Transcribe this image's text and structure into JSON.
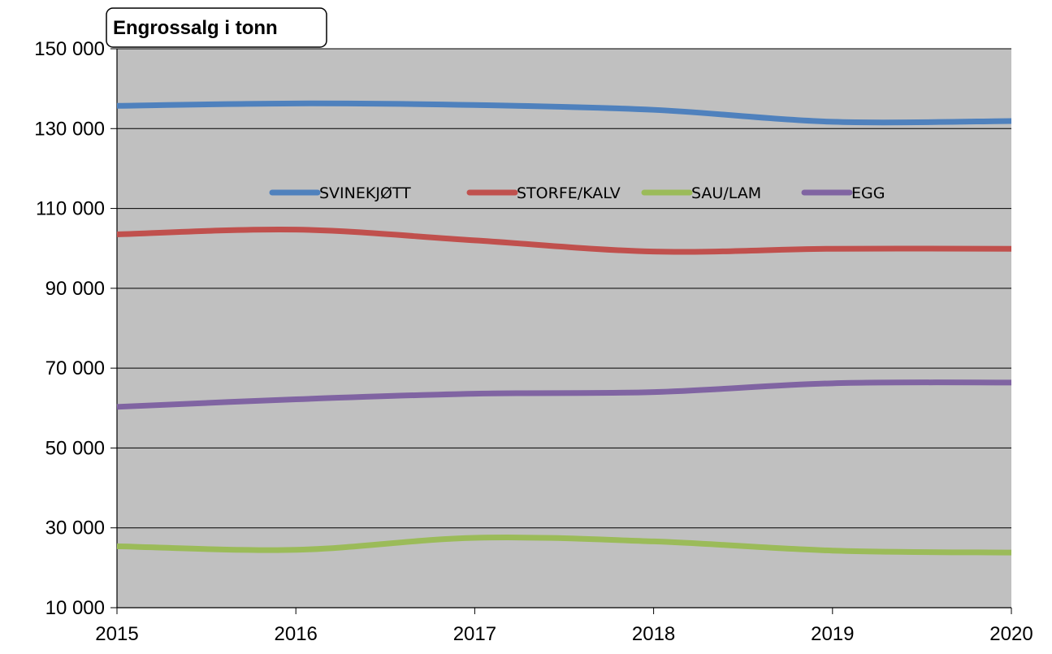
{
  "chart_data": {
    "type": "line",
    "title": "Engrossalg i tonn",
    "xlabel": "",
    "ylabel": "",
    "x": [
      2015,
      2016,
      2017,
      2018,
      2019,
      2020
    ],
    "x_tick_labels": [
      "2015",
      "2016",
      "2017",
      "2018",
      "2019",
      "2020"
    ],
    "ylim": [
      10000,
      150000
    ],
    "y_ticks": [
      10000,
      30000,
      50000,
      70000,
      90000,
      110000,
      130000,
      150000
    ],
    "y_tick_labels": [
      "10 000",
      "30 000",
      "50 000",
      "70 000",
      "90 000",
      "110 000",
      "130 000",
      "150 000"
    ],
    "grid": true,
    "legend_position": "top-center inside plot",
    "plot_background": "#c0c0c0",
    "series": [
      {
        "name": "SVINEKJØTT",
        "color": "#4f81bd",
        "values": [
          135700,
          136300,
          135900,
          134700,
          131700,
          131900
        ]
      },
      {
        "name": "STORFE/KALV",
        "color": "#c0504d",
        "values": [
          103500,
          104700,
          102000,
          99200,
          99900,
          99900
        ]
      },
      {
        "name": "SAU/LAM",
        "color": "#9bbb59",
        "values": [
          25400,
          24500,
          27500,
          26600,
          24300,
          23800
        ]
      },
      {
        "name": "EGG",
        "color": "#8064a2",
        "values": [
          60300,
          62200,
          63600,
          64000,
          66200,
          66400
        ]
      }
    ]
  }
}
